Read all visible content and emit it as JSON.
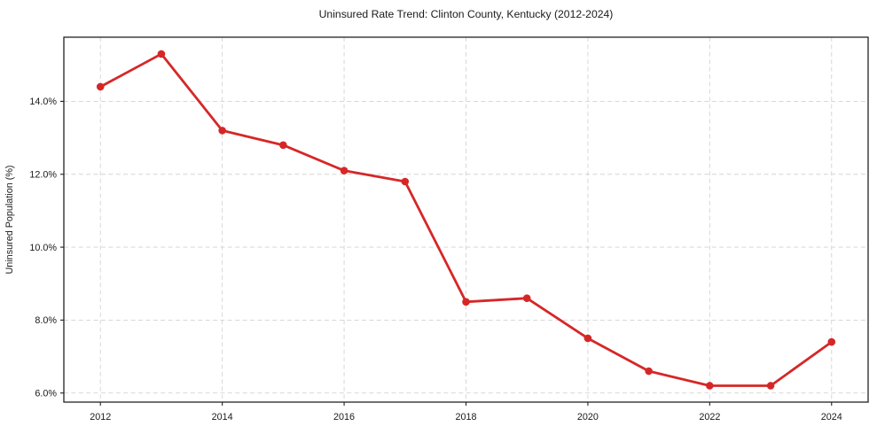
{
  "figure": {
    "background": "#ffffff"
  },
  "chart_data": {
    "type": "line",
    "title": "Uninsured Rate Trend: Clinton County, Kentucky (2012-2024)",
    "xlabel": "",
    "ylabel": "Uninsured Population (%)",
    "x": [
      2012,
      2013,
      2014,
      2015,
      2016,
      2017,
      2018,
      2019,
      2020,
      2021,
      2022,
      2023,
      2024
    ],
    "values": [
      14.4,
      15.3,
      13.2,
      12.8,
      12.1,
      11.8,
      8.5,
      8.6,
      7.5,
      6.6,
      6.2,
      6.2,
      7.4
    ],
    "xticks": [
      2012,
      2014,
      2016,
      2018,
      2020,
      2022,
      2024
    ],
    "xtick_labels": [
      "2012",
      "2014",
      "2016",
      "2018",
      "2020",
      "2022",
      "2024"
    ],
    "yticks": [
      6,
      8,
      10,
      12,
      14
    ],
    "ytick_labels": [
      "6.0%",
      "8.0%",
      "10.0%",
      "12.0%",
      "14.0%"
    ],
    "xlim": [
      2011.4,
      2024.6
    ],
    "ylim": [
      5.75,
      15.76
    ],
    "grid": true,
    "grid_style": "dashed",
    "legend": false,
    "line_color": "#d62728",
    "marker": "circle",
    "grid_color": "#d3d3d3",
    "spine_color": "#222222",
    "text_color": "#1a1a1a"
  }
}
